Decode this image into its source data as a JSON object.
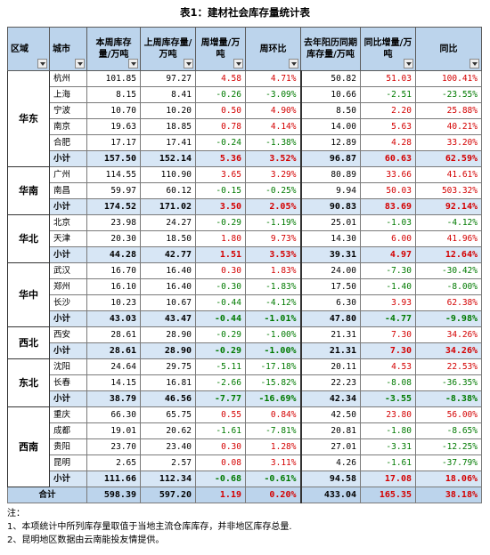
{
  "title": "表1：建材社会库存量统计表",
  "headers": [
    {
      "label": "区域",
      "filter": true
    },
    {
      "label": "城市",
      "filter": true
    },
    {
      "label": "本周库存量/万吨",
      "filter": true
    },
    {
      "label": "上周库存量/万吨",
      "filter": true
    },
    {
      "label": "周增量/万吨",
      "filter": true
    },
    {
      "label": "周环比",
      "filter": true
    },
    {
      "label": "去年阳历同期库存量/万吨",
      "filter": false
    },
    {
      "label": "同比增量/万吨",
      "filter": true
    },
    {
      "label": "同比",
      "filter": true
    }
  ],
  "regions": [
    {
      "name": "华东",
      "rows": [
        {
          "city": "杭州",
          "cur": "101.85",
          "prev": "97.27",
          "inc": "4.58",
          "wow": "4.71%",
          "ly": "50.82",
          "yinc": "51.03",
          "yoy": "100.41%"
        },
        {
          "city": "上海",
          "cur": "8.15",
          "prev": "8.41",
          "inc": "-0.26",
          "wow": "-3.09%",
          "ly": "10.66",
          "yinc": "-2.51",
          "yoy": "-23.55%"
        },
        {
          "city": "宁波",
          "cur": "10.70",
          "prev": "10.20",
          "inc": "0.50",
          "wow": "4.90%",
          "ly": "8.50",
          "yinc": "2.20",
          "yoy": "25.88%"
        },
        {
          "city": "南京",
          "cur": "19.63",
          "prev": "18.85",
          "inc": "0.78",
          "wow": "4.14%",
          "ly": "14.00",
          "yinc": "5.63",
          "yoy": "40.21%"
        },
        {
          "city": "合肥",
          "cur": "17.17",
          "prev": "17.41",
          "inc": "-0.24",
          "wow": "-1.38%",
          "ly": "12.89",
          "yinc": "4.28",
          "yoy": "33.20%"
        },
        {
          "city": "小计",
          "cur": "157.50",
          "prev": "152.14",
          "inc": "5.36",
          "wow": "3.52%",
          "ly": "96.87",
          "yinc": "60.63",
          "yoy": "62.59%",
          "subtotal": true
        }
      ]
    },
    {
      "name": "华南",
      "rows": [
        {
          "city": "广州",
          "cur": "114.55",
          "prev": "110.90",
          "inc": "3.65",
          "wow": "3.29%",
          "ly": "80.89",
          "yinc": "33.66",
          "yoy": "41.61%"
        },
        {
          "city": "南昌",
          "cur": "59.97",
          "prev": "60.12",
          "inc": "-0.15",
          "wow": "-0.25%",
          "ly": "9.94",
          "yinc": "50.03",
          "yoy": "503.32%"
        },
        {
          "city": "小计",
          "cur": "174.52",
          "prev": "171.02",
          "inc": "3.50",
          "wow": "2.05%",
          "ly": "90.83",
          "yinc": "83.69",
          "yoy": "92.14%",
          "subtotal": true
        }
      ]
    },
    {
      "name": "华北",
      "rows": [
        {
          "city": "北京",
          "cur": "23.98",
          "prev": "24.27",
          "inc": "-0.29",
          "wow": "-1.19%",
          "ly": "25.01",
          "yinc": "-1.03",
          "yoy": "-4.12%"
        },
        {
          "city": "天津",
          "cur": "20.30",
          "prev": "18.50",
          "inc": "1.80",
          "wow": "9.73%",
          "ly": "14.30",
          "yinc": "6.00",
          "yoy": "41.96%"
        },
        {
          "city": "小计",
          "cur": "44.28",
          "prev": "42.77",
          "inc": "1.51",
          "wow": "3.53%",
          "ly": "39.31",
          "yinc": "4.97",
          "yoy": "12.64%",
          "subtotal": true
        }
      ]
    },
    {
      "name": "华中",
      "rows": [
        {
          "city": "武汉",
          "cur": "16.70",
          "prev": "16.40",
          "inc": "0.30",
          "wow": "1.83%",
          "ly": "24.00",
          "yinc": "-7.30",
          "yoy": "-30.42%"
        },
        {
          "city": "郑州",
          "cur": "16.10",
          "prev": "16.40",
          "inc": "-0.30",
          "wow": "-1.83%",
          "ly": "17.50",
          "yinc": "-1.40",
          "yoy": "-8.00%"
        },
        {
          "city": "长沙",
          "cur": "10.23",
          "prev": "10.67",
          "inc": "-0.44",
          "wow": "-4.12%",
          "ly": "6.30",
          "yinc": "3.93",
          "yoy": "62.38%"
        },
        {
          "city": "小计",
          "cur": "43.03",
          "prev": "43.47",
          "inc": "-0.44",
          "wow": "-1.01%",
          "ly": "47.80",
          "yinc": "-4.77",
          "yoy": "-9.98%",
          "subtotal": true
        }
      ]
    },
    {
      "name": "西北",
      "rows": [
        {
          "city": "西安",
          "cur": "28.61",
          "prev": "28.90",
          "inc": "-0.29",
          "wow": "-1.00%",
          "ly": "21.31",
          "yinc": "7.30",
          "yoy": "34.26%"
        },
        {
          "city": "小计",
          "cur": "28.61",
          "prev": "28.90",
          "inc": "-0.29",
          "wow": "-1.00%",
          "ly": "21.31",
          "yinc": "7.30",
          "yoy": "34.26%",
          "subtotal": true
        }
      ]
    },
    {
      "name": "东北",
      "rows": [
        {
          "city": "沈阳",
          "cur": "24.64",
          "prev": "29.75",
          "inc": "-5.11",
          "wow": "-17.18%",
          "ly": "20.11",
          "yinc": "4.53",
          "yoy": "22.53%"
        },
        {
          "city": "长春",
          "cur": "14.15",
          "prev": "16.81",
          "inc": "-2.66",
          "wow": "-15.82%",
          "ly": "22.23",
          "yinc": "-8.08",
          "yoy": "-36.35%"
        },
        {
          "city": "小计",
          "cur": "38.79",
          "prev": "46.56",
          "inc": "-7.77",
          "wow": "-16.69%",
          "ly": "42.34",
          "yinc": "-3.55",
          "yoy": "-8.38%",
          "subtotal": true
        }
      ]
    },
    {
      "name": "西南",
      "rows": [
        {
          "city": "重庆",
          "cur": "66.30",
          "prev": "65.75",
          "inc": "0.55",
          "wow": "0.84%",
          "ly": "42.50",
          "yinc": "23.80",
          "yoy": "56.00%"
        },
        {
          "city": "成都",
          "cur": "19.01",
          "prev": "20.62",
          "inc": "-1.61",
          "wow": "-7.81%",
          "ly": "20.81",
          "yinc": "-1.80",
          "yoy": "-8.65%"
        },
        {
          "city": "贵阳",
          "cur": "23.70",
          "prev": "23.40",
          "inc": "0.30",
          "wow": "1.28%",
          "ly": "27.01",
          "yinc": "-3.31",
          "yoy": "-12.25%"
        },
        {
          "city": "昆明",
          "cur": "2.65",
          "prev": "2.57",
          "inc": "0.08",
          "wow": "3.11%",
          "ly": "4.26",
          "yinc": "-1.61",
          "yoy": "-37.79%"
        },
        {
          "city": "小计",
          "cur": "111.66",
          "prev": "112.34",
          "inc": "-0.68",
          "wow": "-0.61%",
          "ly": "94.58",
          "yinc": "17.08",
          "yoy": "18.06%",
          "subtotal": true
        }
      ]
    }
  ],
  "total": {
    "label": "合计",
    "cur": "598.39",
    "prev": "597.20",
    "inc": "1.19",
    "wow": "0.20%",
    "ly": "433.04",
    "yinc": "165.35",
    "yoy": "38.18%"
  },
  "notes": [
    "注：",
    "1、本项统计中所列库存量取值于当地主流仓库库存，并非地区库存总量.",
    "2、昆明地区数据由云南能投友情提供。"
  ],
  "colors": {
    "negative": "#007a00",
    "positive": "#d40000",
    "header_bg": "#bcd4ec",
    "subtotal_bg": "#d7e6f5"
  }
}
